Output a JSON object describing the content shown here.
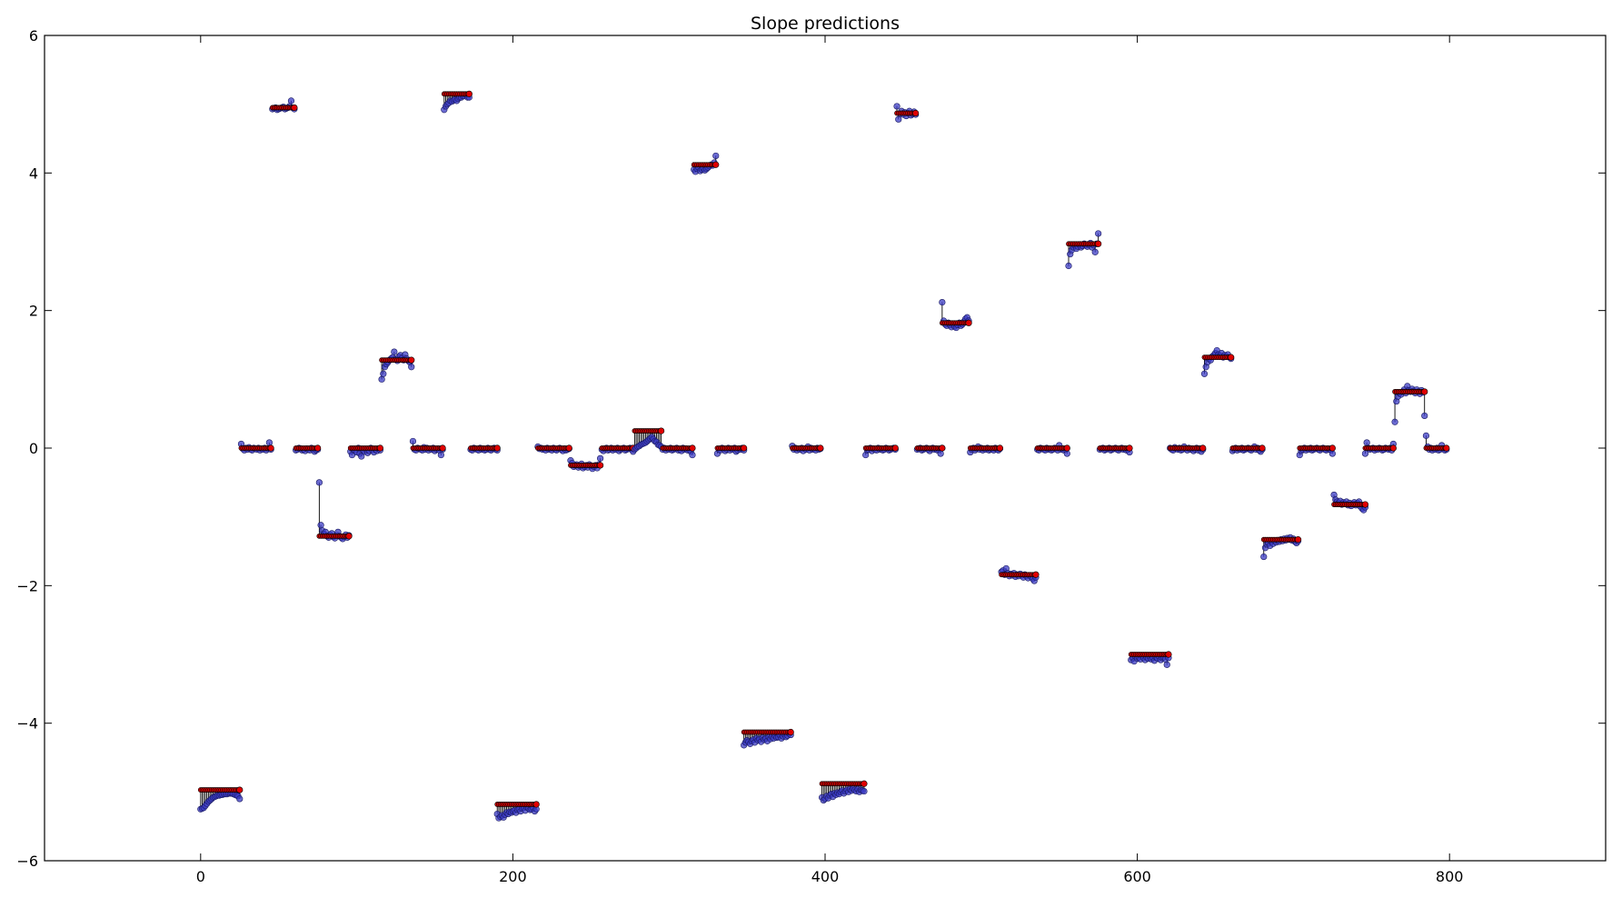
{
  "chart_data": {
    "type": "scatter",
    "title": "Slope predictions",
    "xlabel": "",
    "ylabel": "",
    "xlim": [
      -100,
      900
    ],
    "ylim": [
      -6,
      6
    ],
    "xticks": [
      0,
      200,
      400,
      600,
      800
    ],
    "yticks": [
      6,
      4,
      2,
      0,
      -2,
      -4,
      -6
    ],
    "grid": false,
    "legend": "none",
    "series": [
      {
        "role": "target",
        "color": "#e00000"
      },
      {
        "role": "prediction",
        "color": "#3b3bc4"
      }
    ],
    "segments": [
      {
        "x": [
          0,
          25
        ],
        "target": -4.97,
        "pred": [
          -5.25,
          -5.24,
          -5.23,
          -5.2,
          -5.17,
          -5.14,
          -5.12,
          -5.1,
          -5.08,
          -5.07,
          -5.06,
          -5.05,
          -5.05,
          -5.04,
          -5.04,
          -5.03,
          -5.03,
          -5.03,
          -5.02,
          -5.02,
          -5.02,
          -5.03,
          -5.04,
          -5.05,
          -5.06,
          -5.1
        ]
      },
      {
        "x": [
          26,
          45
        ],
        "target": 0.0,
        "pred": [
          0.06,
          -0.01,
          -0.03,
          0.0,
          -0.02,
          0.01,
          -0.02,
          -0.03,
          0.0,
          -0.01,
          -0.02,
          0.0,
          -0.03,
          -0.01,
          -0.02,
          0.0,
          -0.03,
          -0.01,
          0.08,
          -0.02
        ]
      },
      {
        "x": [
          46,
          60
        ],
        "target": 4.95,
        "pred": [
          4.93,
          4.94,
          4.95,
          4.92,
          4.93,
          4.94,
          4.95,
          4.96,
          4.93,
          4.94,
          4.95,
          4.97,
          5.05,
          4.95,
          4.93
        ]
      },
      {
        "x": [
          61,
          75
        ],
        "target": 0.0,
        "pred": [
          -0.03,
          -0.02,
          0.0,
          -0.01,
          -0.03,
          -0.02,
          -0.04,
          -0.01,
          -0.02,
          -0.03,
          0.0,
          -0.02,
          -0.05,
          -0.03,
          -0.02
        ]
      },
      {
        "x": [
          76,
          95
        ],
        "target": -1.28,
        "pred": [
          -0.5,
          -1.12,
          -1.2,
          -1.25,
          -1.22,
          -1.28,
          -1.3,
          -1.26,
          -1.24,
          -1.29,
          -1.31,
          -1.27,
          -1.22,
          -1.28,
          -1.3,
          -1.32,
          -1.29,
          -1.26,
          -1.3,
          -1.27
        ]
      },
      {
        "x": [
          96,
          115
        ],
        "target": 0.0,
        "pred": [
          -0.05,
          -0.1,
          -0.02,
          -0.04,
          -0.06,
          0.0,
          -0.08,
          -0.12,
          -0.03,
          -0.05,
          -0.02,
          -0.07,
          -0.04,
          0.0,
          -0.03,
          -0.06,
          -0.02,
          -0.04,
          -0.01,
          -0.03
        ]
      },
      {
        "x": [
          116,
          135
        ],
        "target": 1.28,
        "pred": [
          1.0,
          1.08,
          1.18,
          1.22,
          1.25,
          1.28,
          1.3,
          1.32,
          1.4,
          1.29,
          1.27,
          1.33,
          1.35,
          1.31,
          1.28,
          1.36,
          1.3,
          1.27,
          1.25,
          1.18
        ]
      },
      {
        "x": [
          136,
          155
        ],
        "target": 0.0,
        "pred": [
          0.1,
          -0.02,
          -0.03,
          0.0,
          -0.01,
          -0.02,
          -0.03,
          0.01,
          -0.02,
          0.0,
          -0.03,
          -0.01,
          -0.02,
          0.0,
          -0.04,
          -0.02,
          -0.01,
          -0.03,
          -0.1,
          -0.02
        ]
      },
      {
        "x": [
          156,
          172
        ],
        "target": 5.15,
        "pred": [
          4.92,
          4.97,
          5.0,
          5.02,
          5.05,
          5.04,
          5.06,
          5.07,
          5.05,
          5.08,
          5.1,
          5.1,
          5.12,
          5.12,
          5.14,
          5.1,
          5.1
        ]
      },
      {
        "x": [
          173,
          190
        ],
        "target": 0.0,
        "pred": [
          -0.02,
          -0.03,
          0.0,
          -0.01,
          -0.02,
          -0.03,
          0.0,
          -0.02,
          -0.01,
          -0.03,
          -0.02,
          0.0,
          -0.02,
          -0.03,
          -0.01,
          0.0,
          -0.02,
          -0.03
        ]
      },
      {
        "x": [
          190,
          215
        ],
        "target": -5.18,
        "pred": [
          -5.32,
          -5.38,
          -5.36,
          -5.34,
          -5.37,
          -5.33,
          -5.3,
          -5.32,
          -5.29,
          -5.3,
          -5.28,
          -5.27,
          -5.3,
          -5.26,
          -5.25,
          -5.28,
          -5.24,
          -5.23,
          -5.27,
          -5.22,
          -5.24,
          -5.26,
          -5.25,
          -5.23,
          -5.28,
          -5.25
        ]
      },
      {
        "x": [
          216,
          236
        ],
        "target": 0.0,
        "pred": [
          0.02,
          -0.01,
          0.0,
          -0.02,
          -0.01,
          -0.03,
          0.0,
          -0.02,
          -0.01,
          -0.03,
          0.0,
          -0.02,
          -0.03,
          -0.01,
          0.0,
          -0.02,
          -0.04,
          -0.01,
          -0.03,
          -0.02,
          -0.01
        ]
      },
      {
        "x": [
          237,
          256
        ],
        "target": -0.25,
        "pred": [
          -0.18,
          -0.22,
          -0.27,
          -0.25,
          -0.24,
          -0.28,
          -0.26,
          -0.23,
          -0.29,
          -0.27,
          -0.25,
          -0.28,
          -0.24,
          -0.26,
          -0.3,
          -0.27,
          -0.25,
          -0.29,
          -0.24,
          -0.15
        ]
      },
      {
        "x": [
          257,
          277
        ],
        "target": 0.0,
        "pred": [
          -0.02,
          -0.04,
          -0.01,
          0.0,
          -0.03,
          -0.02,
          0.0,
          -0.03,
          -0.01,
          -0.02,
          0.0,
          -0.04,
          -0.02,
          -0.01,
          0.0,
          -0.03,
          -0.02,
          -0.01,
          0.0,
          -0.02,
          -0.05
        ]
      },
      {
        "x": [
          278,
          295
        ],
        "target": 0.25,
        "pred": [
          -0.02,
          0.0,
          0.02,
          0.03,
          0.05,
          0.06,
          0.07,
          0.08,
          0.1,
          0.12,
          0.14,
          0.16,
          0.13,
          0.1,
          0.09,
          0.05,
          0.04,
          0.02
        ]
      },
      {
        "x": [
          296,
          315
        ],
        "target": 0.0,
        "pred": [
          -0.02,
          0.0,
          -0.03,
          -0.01,
          -0.02,
          0.0,
          -0.03,
          -0.02,
          -0.01,
          0.0,
          -0.03,
          -0.02,
          -0.04,
          0.0,
          -0.02,
          -0.01,
          -0.03,
          -0.02,
          -0.05,
          -0.1
        ]
      },
      {
        "x": [
          316,
          330
        ],
        "target": 4.12,
        "pred": [
          4.05,
          4.02,
          4.06,
          4.08,
          4.03,
          4.05,
          4.07,
          4.04,
          4.06,
          4.08,
          4.1,
          4.12,
          4.11,
          4.15,
          4.25
        ]
      },
      {
        "x": [
          331,
          348
        ],
        "target": 0.0,
        "pred": [
          -0.08,
          -0.02,
          -0.03,
          0.0,
          -0.01,
          -0.04,
          -0.02,
          0.0,
          -0.03,
          -0.01,
          -0.02,
          0.0,
          -0.05,
          -0.03,
          -0.01,
          -0.02,
          0.0,
          -0.03
        ]
      },
      {
        "x": [
          348,
          378
        ],
        "target": -4.13,
        "pred": [
          -4.32,
          -4.28,
          -4.25,
          -4.27,
          -4.3,
          -4.26,
          -4.24,
          -4.28,
          -4.22,
          -4.25,
          -4.23,
          -4.27,
          -4.21,
          -4.24,
          -4.22,
          -4.26,
          -4.2,
          -4.23,
          -4.19,
          -4.22,
          -4.18,
          -4.21,
          -4.2,
          -4.17,
          -4.22,
          -4.19,
          -4.16,
          -4.2,
          -4.18,
          -4.15,
          -4.17
        ]
      },
      {
        "x": [
          379,
          397
        ],
        "target": 0.0,
        "pred": [
          0.03,
          -0.02,
          0.0,
          -0.03,
          -0.01,
          -0.02,
          0.0,
          -0.04,
          -0.01,
          -0.02,
          0.02,
          -0.03,
          0.0,
          -0.02,
          -0.01,
          -0.03,
          0.0,
          -0.02,
          -0.01
        ]
      },
      {
        "x": [
          398,
          425
        ],
        "target": -4.88,
        "pred": [
          -5.08,
          -5.12,
          -5.1,
          -5.06,
          -5.09,
          -5.05,
          -5.03,
          -5.07,
          -5.02,
          -5.04,
          -5.01,
          -5.03,
          -5.0,
          -4.98,
          -5.02,
          -4.99,
          -4.97,
          -5.0,
          -4.96,
          -4.98,
          -4.95,
          -4.97,
          -4.99,
          -4.96,
          -5.0,
          -4.97,
          -4.98,
          -4.99
        ]
      },
      {
        "x": [
          426,
          445
        ],
        "target": 0.0,
        "pred": [
          -0.1,
          -0.03,
          -0.02,
          0.0,
          -0.04,
          -0.01,
          -0.02,
          -0.03,
          0.0,
          -0.02,
          -0.01,
          -0.03,
          -0.02,
          0.0,
          -0.01,
          -0.03,
          -0.02,
          -0.01,
          0.0,
          -0.02
        ]
      },
      {
        "x": [
          446,
          458
        ],
        "target": 4.87,
        "pred": [
          4.97,
          4.78,
          4.86,
          4.9,
          4.85,
          4.88,
          4.83,
          4.87,
          4.9,
          4.84,
          4.86,
          4.89,
          4.85
        ]
      },
      {
        "x": [
          459,
          475
        ],
        "target": 0.0,
        "pred": [
          -0.02,
          -0.01,
          0.0,
          -0.03,
          -0.02,
          -0.01,
          0.0,
          -0.02,
          -0.04,
          -0.01,
          0.0,
          -0.02,
          -0.01,
          -0.03,
          -0.02,
          -0.08,
          0.0
        ]
      },
      {
        "x": [
          475,
          492
        ],
        "target": 1.82,
        "pred": [
          2.12,
          1.85,
          1.8,
          1.78,
          1.82,
          1.79,
          1.76,
          1.8,
          1.77,
          1.75,
          1.79,
          1.82,
          1.78,
          1.8,
          1.84,
          1.88,
          1.9,
          1.85
        ]
      },
      {
        "x": [
          493,
          512
        ],
        "target": 0.0,
        "pred": [
          -0.06,
          -0.02,
          0.0,
          -0.03,
          -0.01,
          0.02,
          -0.02,
          0.0,
          -0.03,
          -0.01,
          -0.02,
          0.0,
          -0.03,
          -0.02,
          -0.01,
          -0.03,
          0.0,
          -0.02,
          -0.03,
          -0.01
        ]
      },
      {
        "x": [
          513,
          535
        ],
        "target": -1.84,
        "pred": [
          -1.8,
          -1.78,
          -1.84,
          -1.75,
          -1.82,
          -1.86,
          -1.83,
          -1.85,
          -1.82,
          -1.87,
          -1.84,
          -1.86,
          -1.83,
          -1.85,
          -1.88,
          -1.84,
          -1.86,
          -1.89,
          -1.85,
          -1.87,
          -1.9,
          -1.93,
          -1.88
        ]
      },
      {
        "x": [
          536,
          555
        ],
        "target": 0.0,
        "pred": [
          -0.02,
          -0.03,
          0.0,
          -0.01,
          -0.02,
          -0.03,
          0.0,
          -0.02,
          -0.01,
          -0.03,
          -0.02,
          0.0,
          -0.01,
          -0.03,
          0.04,
          -0.02,
          -0.01,
          -0.03,
          -0.02,
          -0.08
        ]
      },
      {
        "x": [
          556,
          575
        ],
        "target": 2.97,
        "pred": [
          2.65,
          2.82,
          2.88,
          2.92,
          2.95,
          2.9,
          2.93,
          2.96,
          2.92,
          2.94,
          2.97,
          2.95,
          2.93,
          2.96,
          2.98,
          2.92,
          2.95,
          2.85,
          2.97,
          3.12
        ]
      },
      {
        "x": [
          576,
          595
        ],
        "target": 0.0,
        "pred": [
          -0.02,
          -0.01,
          0.0,
          -0.03,
          -0.02,
          -0.01,
          0.0,
          -0.03,
          -0.02,
          -0.01,
          0.0,
          -0.02,
          -0.03,
          -0.01,
          0.0,
          -0.02,
          -0.01,
          -0.03,
          -0.02,
          -0.06
        ]
      },
      {
        "x": [
          596,
          620
        ],
        "target": -3.0,
        "pred": [
          -3.08,
          -3.05,
          -3.1,
          -3.03,
          -3.06,
          -3.04,
          -3.07,
          -3.02,
          -3.05,
          -3.08,
          -3.04,
          -3.06,
          -3.03,
          -3.07,
          -3.05,
          -3.09,
          -3.04,
          -3.06,
          -3.03,
          -3.08,
          -3.05,
          -3.04,
          -3.07,
          -3.15,
          -3.05
        ]
      },
      {
        "x": [
          621,
          642
        ],
        "target": 0.0,
        "pred": [
          0.0,
          -0.02,
          -0.03,
          0.01,
          -0.01,
          -0.02,
          0.0,
          -0.03,
          -0.02,
          0.02,
          -0.01,
          -0.03,
          0.0,
          -0.02,
          -0.01,
          -0.04,
          -0.02,
          0.0,
          -0.03,
          -0.01,
          -0.05,
          -0.02
        ]
      },
      {
        "x": [
          643,
          660
        ],
        "target": 1.32,
        "pred": [
          1.08,
          1.18,
          1.25,
          1.3,
          1.28,
          1.33,
          1.35,
          1.38,
          1.42,
          1.36,
          1.34,
          1.38,
          1.32,
          1.35,
          1.33,
          1.36,
          1.32,
          1.3
        ]
      },
      {
        "x": [
          661,
          680
        ],
        "target": 0.0,
        "pred": [
          -0.04,
          -0.02,
          0.0,
          -0.03,
          -0.01,
          -0.02,
          0.0,
          -0.03,
          -0.02,
          -0.01,
          0.0,
          -0.02,
          -0.03,
          -0.01,
          0.02,
          -0.02,
          0.0,
          -0.03,
          -0.05,
          -0.02
        ]
      },
      {
        "x": [
          681,
          703
        ],
        "target": -1.33,
        "pred": [
          -1.58,
          -1.45,
          -1.4,
          -1.38,
          -1.42,
          -1.36,
          -1.39,
          -1.35,
          -1.37,
          -1.34,
          -1.36,
          -1.33,
          -1.35,
          -1.32,
          -1.34,
          -1.31,
          -1.33,
          -1.3,
          -1.34,
          -1.32,
          -1.36,
          -1.38,
          -1.35
        ]
      },
      {
        "x": [
          704,
          725
        ],
        "target": 0.0,
        "pred": [
          -0.1,
          -0.04,
          -0.02,
          0.0,
          -0.03,
          -0.01,
          -0.02,
          0.0,
          -0.03,
          -0.02,
          -0.01,
          0.0,
          -0.02,
          -0.03,
          -0.01,
          0.0,
          -0.02,
          -0.03,
          -0.01,
          -0.02,
          -0.03,
          -0.08
        ]
      },
      {
        "x": [
          726,
          746
        ],
        "target": -0.82,
        "pred": [
          -0.68,
          -0.75,
          -0.78,
          -0.8,
          -0.77,
          -0.82,
          -0.79,
          -0.81,
          -0.78,
          -0.83,
          -0.8,
          -0.84,
          -0.81,
          -0.79,
          -0.83,
          -0.8,
          -0.78,
          -0.85,
          -0.88,
          -0.9,
          -0.86
        ]
      },
      {
        "x": [
          746,
          764
        ],
        "target": 0.0,
        "pred": [
          -0.08,
          0.08,
          0.0,
          -0.02,
          -0.01,
          0.0,
          -0.03,
          -0.01,
          -0.02,
          0.0,
          -0.01,
          -0.03,
          -0.02,
          0.0,
          -0.01,
          -0.02,
          0.0,
          -0.03,
          0.06
        ]
      },
      {
        "x": [
          765,
          784
        ],
        "target": 0.82,
        "pred": [
          0.38,
          0.68,
          0.75,
          0.8,
          0.78,
          0.82,
          0.85,
          0.8,
          0.9,
          0.84,
          0.82,
          0.86,
          0.83,
          0.8,
          0.85,
          0.82,
          0.79,
          0.84,
          0.81,
          0.47
        ]
      },
      {
        "x": [
          785,
          798
        ],
        "target": 0.0,
        "pred": [
          0.18,
          0.02,
          -0.02,
          0.0,
          -0.03,
          -0.01,
          -0.02,
          0.0,
          -0.03,
          -0.02,
          0.04,
          -0.01,
          -0.03,
          -0.02
        ]
      }
    ]
  }
}
